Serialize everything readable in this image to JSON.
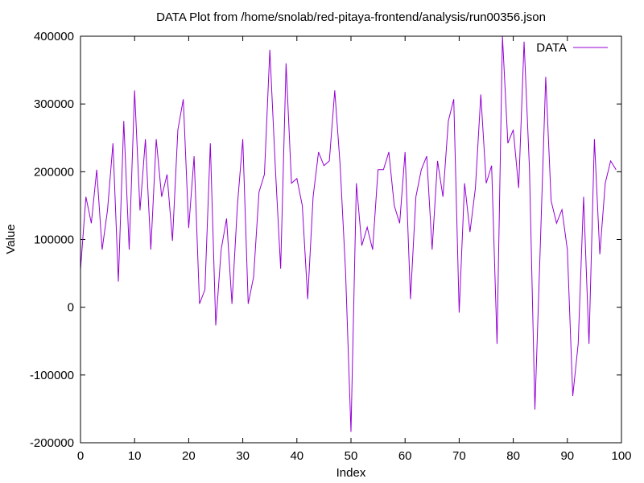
{
  "chart_data": {
    "type": "line",
    "title": "DATA Plot from /home/snolab/red-pitaya-frontend/analysis/run00356.json",
    "xlabel": "Index",
    "ylabel": "Value",
    "xlim": [
      0,
      100
    ],
    "ylim": [
      -200000,
      400000
    ],
    "x_ticks": [
      0,
      10,
      20,
      30,
      40,
      50,
      60,
      70,
      80,
      90,
      100
    ],
    "y_ticks": [
      -200000,
      -100000,
      0,
      100000,
      200000,
      300000,
      400000
    ],
    "grid": false,
    "legend_position": "top-right",
    "series": [
      {
        "name": "DATA",
        "color": "#9400d3",
        "x": [
          0,
          1,
          2,
          3,
          4,
          5,
          6,
          7,
          8,
          9,
          10,
          11,
          12,
          13,
          14,
          15,
          16,
          17,
          18,
          19,
          20,
          21,
          22,
          23,
          24,
          25,
          26,
          27,
          28,
          29,
          30,
          31,
          32,
          33,
          34,
          35,
          36,
          37,
          38,
          39,
          40,
          41,
          42,
          43,
          44,
          45,
          46,
          47,
          48,
          49,
          50,
          51,
          52,
          53,
          54,
          55,
          56,
          57,
          58,
          59,
          60,
          61,
          62,
          63,
          64,
          65,
          66,
          67,
          68,
          69,
          70,
          71,
          72,
          73,
          74,
          75,
          76,
          77,
          78,
          79,
          80,
          81,
          82,
          83,
          84,
          85,
          86,
          87,
          88,
          89,
          90,
          91,
          92,
          93,
          94,
          95,
          96,
          97,
          98,
          99
        ],
        "values": [
          55000,
          163000,
          124000,
          203000,
          85000,
          144000,
          242000,
          38000,
          275000,
          85000,
          320000,
          143000,
          248000,
          85000,
          248000,
          163000,
          196000,
          98000,
          262000,
          307000,
          117000,
          223000,
          5000,
          26000,
          242000,
          -27000,
          85000,
          131000,
          5000,
          150000,
          248000,
          5000,
          45000,
          170000,
          196000,
          380000,
          209000,
          57000,
          360000,
          183000,
          190000,
          150000,
          12000,
          163000,
          229000,
          209000,
          216000,
          320000,
          209000,
          52000,
          -184000,
          183000,
          91000,
          118000,
          85000,
          203000,
          203000,
          229000,
          150000,
          124000,
          229000,
          12000,
          163000,
          203000,
          223000,
          85000,
          216000,
          163000,
          275000,
          307000,
          -8000,
          183000,
          111000,
          176000,
          314000,
          183000,
          209000,
          -54000,
          405000,
          242000,
          262000,
          176000,
          392000,
          203000,
          -151000,
          91000,
          340000,
          157000,
          124000,
          144000,
          85000,
          -131000,
          -54000,
          163000,
          -54000,
          248000,
          78000,
          183000,
          216000,
          203000
        ]
      }
    ]
  }
}
